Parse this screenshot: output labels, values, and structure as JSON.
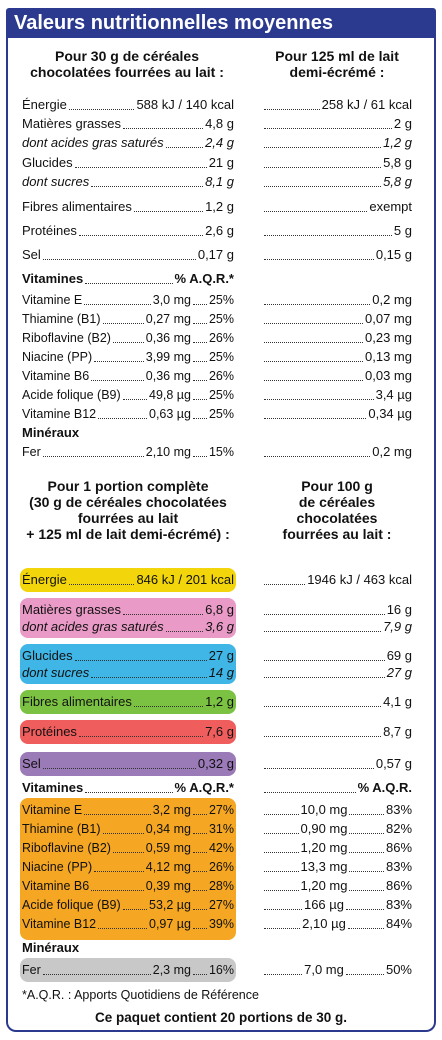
{
  "title": "Valeurs nutritionnelles moyennes",
  "header1": {
    "left": [
      "Pour 30 g de céréales",
      "chocolatées fourrées au lait :"
    ],
    "right": [
      "Pour 125 ml de lait",
      "demi-écrémé :"
    ]
  },
  "section1": {
    "energie": {
      "label": "Énergie",
      "l": "588 kJ / 140 kcal",
      "r": "258 kJ / 61 kcal"
    },
    "mg": {
      "label": "Matières grasses",
      "l": "4,8 g",
      "r": "2 g"
    },
    "ags": {
      "label": "dont acides gras saturés",
      "l": "2,4 g",
      "r": "1,2 g"
    },
    "glucides": {
      "label": "Glucides",
      "l": "21 g",
      "r": "5,8 g"
    },
    "sucres": {
      "label": "dont sucres",
      "l": "8,1 g",
      "r": "5,8 g"
    },
    "fibres": {
      "label": "Fibres alimentaires",
      "l": "1,2 g",
      "r": "exempt"
    },
    "proteines": {
      "label": "Protéines",
      "l": "2,6 g",
      "r": "5 g"
    },
    "sel": {
      "label": "Sel",
      "l": "0,17 g",
      "r": "0,15 g"
    },
    "vitamines": {
      "label": "Vitamines",
      "l": "% A.Q.R.*"
    },
    "vitE": {
      "label": "Vitamine E",
      "l": "3,0 mg",
      "p": "25%",
      "r": "0,2 mg"
    },
    "vitB1": {
      "label": "Thiamine (B1)",
      "l": "0,27 mg",
      "p": "25%",
      "r": "0,07 mg"
    },
    "vitB2": {
      "label": "Riboflavine (B2)",
      "l": "0,36 mg",
      "p": "26%",
      "r": "0,23 mg"
    },
    "vitPP": {
      "label": "Niacine (PP)",
      "l": "3,99 mg",
      "p": "25%",
      "r": "0,13 mg"
    },
    "vitB6": {
      "label": "Vitamine B6",
      "l": "0,36 mg",
      "p": "26%",
      "r": "0,03 mg"
    },
    "vitB9": {
      "label": "Acide folique (B9)",
      "l": "49,8 µg",
      "p": "25%",
      "r": "3,4 µg"
    },
    "vitB12": {
      "label": "Vitamine B12",
      "l": "0,63 µg",
      "p": "25%",
      "r": "0,34 µg"
    },
    "mineraux": {
      "label": "Minéraux"
    },
    "fer": {
      "label": "Fer",
      "l": "2,10 mg",
      "p": "15%",
      "r": "0,2 mg"
    }
  },
  "header2": {
    "left": [
      "Pour 1 portion complète",
      "(30 g de céréales chocolatées",
      "fourrées au lait",
      "+ 125 ml de lait demi-écrémé) :"
    ],
    "right": [
      "Pour 100 g",
      "de céréales",
      "chocolatées",
      "fourrées au lait :"
    ]
  },
  "section2": {
    "energie": {
      "label": "Énergie",
      "l": "846 kJ / 201 kcal",
      "r": "1946 kJ / 463 kcal"
    },
    "mg": {
      "label": "Matières grasses",
      "l": "6,8 g",
      "r": "16 g"
    },
    "ags": {
      "label": "dont acides gras saturés",
      "l": "3,6 g",
      "r": "7,9 g"
    },
    "glucides": {
      "label": "Glucides",
      "l": "27 g",
      "r": "69 g"
    },
    "sucres": {
      "label": "dont sucres",
      "l": "14 g",
      "r": "27 g"
    },
    "fibres": {
      "label": "Fibres alimentaires",
      "l": "1,2 g",
      "r": "4,1 g"
    },
    "proteines": {
      "label": "Protéines",
      "l": "7,6 g",
      "r": "8,7 g"
    },
    "sel": {
      "label": "Sel",
      "l": "0,32 g",
      "r": "0,57 g"
    },
    "vitamines": {
      "label": "Vitamines",
      "l": "% A.Q.R.*",
      "r": "% A.Q.R."
    },
    "vitE": {
      "label": "Vitamine E",
      "l": "3,2 mg",
      "p": "27%",
      "r": "10,0 mg",
      "rp": "83%"
    },
    "vitB1": {
      "label": "Thiamine (B1)",
      "l": "0,34 mg",
      "p": "31%",
      "r": "0,90 mg",
      "rp": "82%"
    },
    "vitB2": {
      "label": "Riboflavine (B2)",
      "l": "0,59 mg",
      "p": "42%",
      "r": "1,20 mg",
      "rp": "86%"
    },
    "vitPP": {
      "label": "Niacine (PP)",
      "l": "4,12 mg",
      "p": "26%",
      "r": "13,3 mg",
      "rp": "83%"
    },
    "vitB6": {
      "label": "Vitamine B6",
      "l": "0,39 mg",
      "p": "28%",
      "r": "1,20 mg",
      "rp": "86%"
    },
    "vitB9": {
      "label": "Acide folique (B9)",
      "l": "53,2 µg",
      "p": "27%",
      "r": "166 µg",
      "rp": "83%"
    },
    "vitB12": {
      "label": "Vitamine B12",
      "l": "0,97 µg",
      "p": "39%",
      "r": "2,10 µg",
      "rp": "84%"
    },
    "mineraux": {
      "label": "Minéraux"
    },
    "fer": {
      "label": "Fer",
      "l": "2,3 mg",
      "p": "16%",
      "r": "7,0 mg",
      "rp": "50%"
    }
  },
  "footnote": "*A.Q.R. : Apports Quotidiens de Référence",
  "portions": "Ce paquet contient 20 portions de 30 g.",
  "colors": {
    "brand": "#2b3a8f",
    "energie": "#f2d60b",
    "mg": "#e99ac6",
    "glucides": "#3fb6e6",
    "fibres": "#7cc242",
    "proteines": "#ef5d5d",
    "sel": "#9b7ab8",
    "vitamines": "#f5a623",
    "mineraux": "#c8c8c8"
  }
}
